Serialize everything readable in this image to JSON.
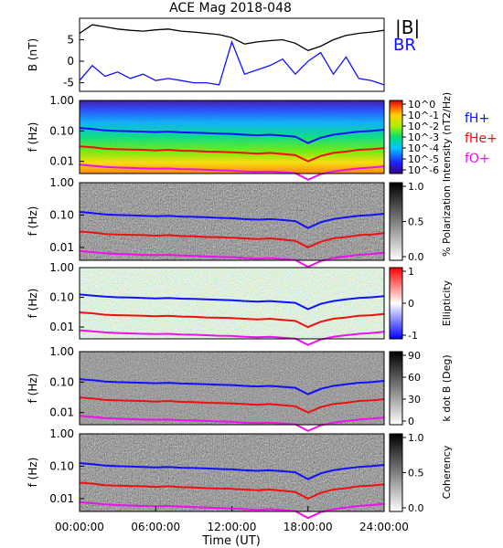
{
  "title": "ACE Mag 2018-048",
  "xlabel": "Time (UT)",
  "x_ticks": [
    "00:00:00",
    "06:00:00",
    "12:00:00",
    "18:00:00",
    "24:00:00"
  ],
  "colors": {
    "black": "#000000",
    "blue": "#1010ff",
    "red": "#ee1010",
    "magenta": "#ee10ee"
  },
  "chart_data": [
    {
      "type": "line",
      "ylabel": "B (nT)",
      "y_ticks": [
        "5",
        "0",
        "-5"
      ],
      "ylim": [
        -7,
        10
      ],
      "x_range_hours": [
        0,
        24
      ],
      "legend": [
        "|B|",
        "BR"
      ],
      "series": [
        {
          "name": "|B|",
          "color": "#000000",
          "x": [
            0,
            1,
            2,
            3,
            4,
            5,
            6,
            7,
            8,
            9,
            10,
            11,
            12,
            13,
            14,
            15,
            16,
            17,
            18,
            19,
            20,
            21,
            22,
            23,
            24
          ],
          "y": [
            6.5,
            8.5,
            8.0,
            7.5,
            7.2,
            7.0,
            7.3,
            7.5,
            7.0,
            6.8,
            6.5,
            6.2,
            5.5,
            4.0,
            4.5,
            4.8,
            5.0,
            4.2,
            2.5,
            3.5,
            5.0,
            6.0,
            6.5,
            6.8,
            7.2
          ]
        },
        {
          "name": "BR",
          "color": "#1010ff",
          "x": [
            0,
            1,
            2,
            3,
            4,
            5,
            6,
            7,
            8,
            9,
            10,
            11,
            12,
            13,
            14,
            15,
            16,
            17,
            18,
            19,
            20,
            21,
            22,
            23,
            24
          ],
          "y": [
            -4.5,
            -1.0,
            -3.5,
            -2.5,
            -4.0,
            -3.0,
            -4.5,
            -4.0,
            -4.5,
            -5.0,
            -5.0,
            -5.5,
            4.5,
            -3.0,
            -2.0,
            -1.0,
            0.5,
            -3.0,
            0.0,
            2.0,
            -3.0,
            1.0,
            -4.0,
            -4.5,
            -5.5
          ]
        }
      ]
    },
    {
      "type": "heatmap",
      "ylabel": "f (Hz)",
      "y_ticks": [
        "1.00",
        "0.10",
        "0.01"
      ],
      "y_scale": "log",
      "ylim": [
        0.004,
        1.0
      ],
      "colorbar_label": "Intensity (nT2/Hz)",
      "colorbar_ticks": [
        "10^0",
        "10^-1",
        "10^-2",
        "10^-3",
        "10^-4",
        "10^-5",
        "10^-6"
      ],
      "overlay_legend": [
        "fH+",
        "fHe+",
        "fO+"
      ]
    },
    {
      "type": "heatmap",
      "ylabel": "f (Hz)",
      "y_ticks": [
        "1.00",
        "0.10",
        "0.01"
      ],
      "y_scale": "log",
      "colorbar_label": "% Polarization",
      "colorbar_ticks": [
        "1.0",
        "0.5",
        "0.0"
      ]
    },
    {
      "type": "heatmap",
      "ylabel": "f (Hz)",
      "y_ticks": [
        "1.00",
        "0.10",
        "0.01"
      ],
      "y_scale": "log",
      "colorbar_label": "Ellipticity",
      "colorbar_ticks": [
        "1",
        "0",
        "-1"
      ]
    },
    {
      "type": "heatmap",
      "ylabel": "f (Hz)",
      "y_ticks": [
        "1.00",
        "0.10",
        "0.01"
      ],
      "y_scale": "log",
      "colorbar_label": "k dot B (Deg)",
      "colorbar_ticks": [
        "90",
        "60",
        "30",
        "0"
      ]
    },
    {
      "type": "heatmap",
      "ylabel": "f (Hz)",
      "y_ticks": [
        "1.00",
        "0.10",
        "0.01"
      ],
      "y_scale": "log",
      "colorbar_label": "Coherency",
      "colorbar_ticks": [
        "1.0",
        "0.5",
        "0.0"
      ]
    }
  ],
  "gyrofrequency_lines": {
    "x": [
      0,
      1,
      2,
      3,
      4,
      5,
      6,
      7,
      8,
      9,
      10,
      11,
      12,
      13,
      14,
      15,
      16,
      17,
      18,
      19,
      20,
      21,
      22,
      23,
      24
    ],
    "fH+": [
      0.125,
      0.115,
      0.105,
      0.1,
      0.098,
      0.095,
      0.092,
      0.095,
      0.09,
      0.088,
      0.085,
      0.082,
      0.08,
      0.075,
      0.072,
      0.075,
      0.07,
      0.065,
      0.04,
      0.06,
      0.075,
      0.085,
      0.095,
      0.1,
      0.11
    ],
    "fHe+": [
      0.031,
      0.029,
      0.026,
      0.025,
      0.0245,
      0.024,
      0.023,
      0.024,
      0.0225,
      0.022,
      0.021,
      0.0205,
      0.02,
      0.019,
      0.018,
      0.019,
      0.0175,
      0.016,
      0.01,
      0.015,
      0.019,
      0.021,
      0.024,
      0.025,
      0.0275
    ],
    "fO+": [
      0.0078,
      0.0072,
      0.0066,
      0.0063,
      0.0061,
      0.0059,
      0.0058,
      0.0059,
      0.0056,
      0.0055,
      0.0053,
      0.0051,
      0.005,
      0.0047,
      0.0045,
      0.0047,
      0.0044,
      0.0041,
      0.0025,
      0.0038,
      0.0047,
      0.0053,
      0.0059,
      0.0063,
      0.0069
    ]
  }
}
